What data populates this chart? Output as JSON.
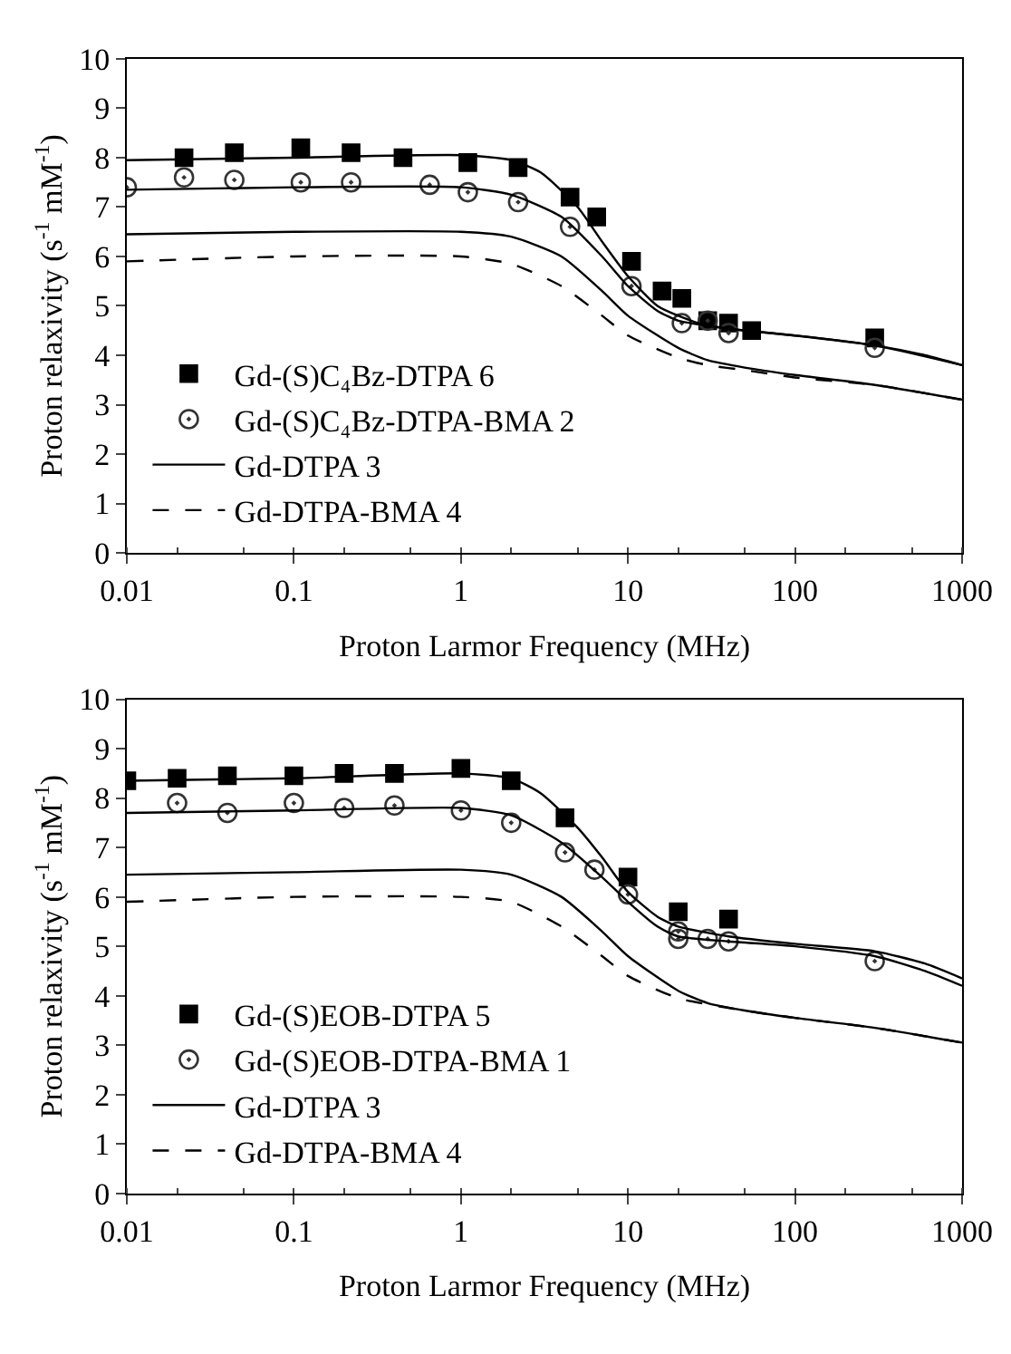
{
  "chart_data": [
    {
      "type": "scatter",
      "xlabel": "Proton Larmor Frequency (MHz)",
      "ylabel": "Proton relaxivity (s$^{-1}$ mM$^{-1}$)",
      "log": "x",
      "xlim": [
        0.01,
        1000
      ],
      "xticks": [
        0.01,
        0.1,
        1,
        10,
        100,
        1000
      ],
      "ylim": [
        0,
        10
      ],
      "yticks": [
        0,
        1,
        2,
        3,
        4,
        5,
        6,
        7,
        8,
        9,
        10
      ],
      "legend": "bottom left",
      "series": [
        {
          "name": "Gd-(S)C₄Bz-DTPA 6",
          "marker": "square",
          "color": "#000000",
          "x": [
            0.022,
            0.044,
            0.11,
            0.22,
            0.45,
            1.1,
            2.2,
            4.5,
            6.5,
            10.5,
            16,
            21,
            30,
            40,
            55,
            300
          ],
          "values": [
            8.0,
            8.1,
            8.2,
            8.1,
            8.0,
            7.9,
            7.8,
            7.2,
            6.8,
            5.9,
            5.3,
            5.15,
            4.7,
            4.65,
            4.5,
            4.35
          ]
        },
        {
          "name": "Gd-(S)C₄Bz-DTPA-BMA 2",
          "marker": "circle",
          "color": "#333333",
          "x": [
            0.01,
            0.022,
            0.044,
            0.11,
            0.22,
            0.65,
            1.1,
            2.2,
            4.5,
            10.5,
            21,
            30,
            40,
            300
          ],
          "values": [
            7.4,
            7.6,
            7.55,
            7.5,
            7.5,
            7.45,
            7.3,
            7.1,
            6.6,
            5.4,
            4.65,
            4.7,
            4.45,
            4.15
          ]
        },
        {
          "name": "Gd-DTPA 3",
          "type": "line",
          "line_style": "solid",
          "color": "#000000",
          "x": [
            0.01,
            0.1,
            1,
            2,
            4,
            7,
            10,
            20,
            30,
            50,
            100,
            300,
            1000
          ],
          "values": [
            6.45,
            6.5,
            6.5,
            6.4,
            6.0,
            5.3,
            4.8,
            4.15,
            3.9,
            3.75,
            3.6,
            3.4,
            3.1
          ]
        },
        {
          "name": "Gd-DTPA-BMA 4",
          "type": "line",
          "line_style": "dashed",
          "color": "#000000",
          "x": [
            0.01,
            0.1,
            1,
            2,
            4,
            7,
            10,
            20,
            30,
            50,
            100,
            300,
            1000
          ],
          "values": [
            5.9,
            6.0,
            6.0,
            5.85,
            5.4,
            4.8,
            4.4,
            3.95,
            3.8,
            3.7,
            3.55,
            3.4,
            3.1
          ]
        },
        {
          "type": "line",
          "line_style": "solid",
          "color": "#000000",
          "x": [
            0.01,
            0.1,
            1,
            2,
            3,
            5,
            7,
            10,
            15,
            20,
            30,
            50,
            100,
            300,
            600,
            1000
          ],
          "values": [
            7.95,
            8.0,
            8.05,
            7.95,
            7.7,
            7.0,
            6.3,
            5.6,
            5.0,
            4.8,
            4.6,
            4.5,
            4.4,
            4.2,
            4.0,
            3.8
          ]
        },
        {
          "type": "line",
          "line_style": "solid",
          "color": "#000000",
          "x": [
            0.01,
            0.1,
            1,
            2,
            4,
            7,
            10,
            15,
            20,
            30,
            50,
            100,
            300,
            1000
          ],
          "values": [
            7.35,
            7.4,
            7.4,
            7.25,
            6.8,
            6.0,
            5.4,
            4.9,
            4.7,
            4.6,
            4.5,
            4.4,
            4.2,
            3.8
          ]
        }
      ]
    },
    {
      "type": "scatter",
      "xlabel": "Proton Larmor Frequency (MHz)",
      "ylabel": "Proton relaxivity (s$^{-1}$ mM$^{-1}$)",
      "log": "x",
      "xlim": [
        0.01,
        1000
      ],
      "xticks": [
        0.01,
        0.1,
        1,
        10,
        100,
        1000
      ],
      "ylim": [
        0,
        10
      ],
      "yticks": [
        0,
        1,
        2,
        3,
        4,
        5,
        6,
        7,
        8,
        9,
        10
      ],
      "legend": "bottom left",
      "series": [
        {
          "name": "Gd-(S)EOB-DTPA 5",
          "marker": "square",
          "color": "#000000",
          "x": [
            0.01,
            0.02,
            0.04,
            0.1,
            0.2,
            0.4,
            1,
            2,
            4.2,
            10,
            20,
            40
          ],
          "values": [
            8.35,
            8.4,
            8.45,
            8.45,
            8.5,
            8.5,
            8.6,
            8.35,
            7.6,
            6.4,
            5.7,
            5.55
          ]
        },
        {
          "name": "Gd-(S)EOB-DTPA-BMA 1",
          "marker": "circle",
          "color": "#333333",
          "x": [
            0.02,
            0.04,
            0.1,
            0.2,
            0.4,
            1,
            2,
            4.2,
            6.3,
            10,
            20,
            20,
            30,
            40,
            300
          ],
          "values": [
            7.9,
            7.7,
            7.9,
            7.8,
            7.85,
            7.75,
            7.5,
            6.9,
            6.55,
            6.05,
            5.15,
            5.3,
            5.15,
            5.1,
            4.7
          ]
        },
        {
          "name": "Gd-DTPA 3",
          "type": "line",
          "line_style": "solid",
          "color": "#000000",
          "x": [
            0.01,
            0.1,
            1,
            2,
            4,
            7,
            10,
            20,
            30,
            50,
            100,
            300,
            1000
          ],
          "values": [
            6.45,
            6.5,
            6.55,
            6.45,
            6.0,
            5.3,
            4.8,
            4.1,
            3.85,
            3.7,
            3.55,
            3.35,
            3.05
          ]
        },
        {
          "name": "Gd-DTPA-BMA 4",
          "type": "line",
          "line_style": "dashed",
          "color": "#000000",
          "x": [
            0.01,
            0.1,
            1,
            2,
            4,
            7,
            10,
            20,
            50,
            100,
            300,
            1000
          ],
          "values": [
            5.9,
            6.0,
            6.0,
            5.9,
            5.4,
            4.8,
            4.4,
            3.95,
            3.7,
            3.55,
            3.35,
            3.05
          ]
        },
        {
          "type": "line",
          "line_style": "solid",
          "color": "#000000",
          "x": [
            0.01,
            0.1,
            1,
            2,
            3,
            5,
            7,
            10,
            15,
            20,
            40,
            100,
            300,
            600,
            1000
          ],
          "values": [
            8.35,
            8.4,
            8.5,
            8.4,
            8.1,
            7.4,
            6.8,
            6.1,
            5.6,
            5.4,
            5.2,
            5.05,
            4.9,
            4.65,
            4.35
          ]
        },
        {
          "type": "line",
          "line_style": "solid",
          "color": "#000000",
          "x": [
            0.01,
            0.1,
            1,
            2,
            4,
            7,
            10,
            15,
            20,
            40,
            100,
            300,
            600,
            1000
          ],
          "values": [
            7.7,
            7.75,
            7.8,
            7.65,
            7.1,
            6.4,
            5.9,
            5.4,
            5.2,
            5.1,
            5.0,
            4.8,
            4.5,
            4.2
          ]
        }
      ]
    }
  ]
}
